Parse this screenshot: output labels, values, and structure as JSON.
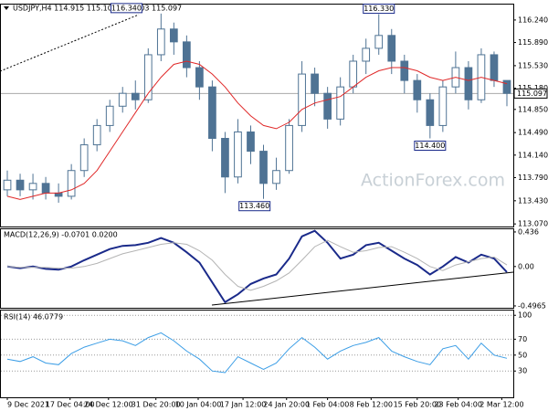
{
  "chart_data": [
    {
      "type": "candlestick",
      "title": "USDJPY,H4 114.915 115.101 114.903 115.097",
      "watermark": "ActionForex.com",
      "color": "#4f7394",
      "open": [
        113.6,
        113.75,
        113.6,
        113.7,
        113.55,
        113.5,
        113.9,
        114.3,
        114.6,
        114.9,
        115.1,
        115.0,
        115.7,
        116.1,
        115.9,
        115.5,
        115.2,
        114.4,
        113.8,
        114.5,
        114.2,
        113.7,
        113.9,
        114.6,
        115.4,
        115.1,
        114.7,
        115.2,
        115.6,
        115.8,
        116.0,
        115.6,
        115.3,
        115.0,
        114.6,
        115.2,
        115.5,
        115.0,
        115.7,
        115.3
      ],
      "high": [
        113.9,
        113.85,
        113.85,
        113.8,
        113.7,
        114.0,
        114.4,
        114.7,
        115.0,
        115.2,
        115.3,
        115.8,
        116.34,
        116.2,
        116.0,
        115.6,
        115.3,
        114.5,
        114.7,
        114.6,
        114.3,
        114.1,
        114.7,
        115.6,
        115.5,
        115.2,
        115.35,
        115.7,
        115.95,
        116.33,
        116.1,
        115.7,
        115.4,
        115.1,
        115.3,
        115.75,
        115.6,
        115.8,
        115.75,
        115.3
      ],
      "low": [
        113.5,
        113.5,
        113.45,
        113.45,
        113.4,
        113.45,
        113.8,
        114.2,
        114.5,
        114.8,
        114.85,
        114.95,
        115.6,
        115.7,
        115.35,
        115.0,
        114.2,
        113.55,
        113.7,
        114.0,
        113.46,
        113.6,
        113.85,
        114.5,
        114.9,
        114.55,
        114.6,
        115.1,
        115.4,
        115.7,
        115.4,
        115.1,
        114.8,
        114.4,
        114.5,
        115.1,
        114.85,
        114.95,
        115.2,
        114.9
      ],
      "close": [
        113.75,
        113.6,
        113.7,
        113.55,
        113.5,
        113.9,
        114.3,
        114.6,
        114.9,
        115.1,
        115.0,
        115.7,
        116.1,
        115.9,
        115.5,
        115.2,
        114.4,
        113.8,
        114.5,
        114.2,
        113.7,
        113.9,
        114.6,
        115.4,
        115.1,
        114.7,
        115.2,
        115.6,
        115.8,
        116.0,
        115.6,
        115.3,
        115.0,
        114.6,
        115.2,
        115.5,
        115.0,
        115.7,
        115.3,
        115.1
      ],
      "overlay": {
        "color": "#e02828",
        "values": [
          113.5,
          113.45,
          113.5,
          113.55,
          113.55,
          113.6,
          113.7,
          113.9,
          114.2,
          114.5,
          114.8,
          115.1,
          115.35,
          115.55,
          115.6,
          115.55,
          115.4,
          115.2,
          114.95,
          114.75,
          114.6,
          114.55,
          114.65,
          114.85,
          114.95,
          115.0,
          115.05,
          115.2,
          115.35,
          115.45,
          115.5,
          115.5,
          115.45,
          115.35,
          115.3,
          115.35,
          115.3,
          115.35,
          115.3,
          115.25
        ]
      },
      "current_price": {
        "value": 115.097,
        "label": "115.097"
      },
      "annotations": [
        {
          "value": 116.34,
          "label": "116.340"
        },
        {
          "value": 116.33,
          "label": "116.330"
        },
        {
          "value": 113.46,
          "label": "113.460"
        },
        {
          "value": 114.4,
          "label": "114.400"
        }
      ],
      "xlim": [
        -0.5,
        39.5
      ],
      "ylim": [
        113.03,
        116.48
      ],
      "yticks": [
        {
          "value": 116.24,
          "label": "116.240"
        },
        {
          "value": 115.89,
          "label": "115.890"
        },
        {
          "value": 115.53,
          "label": "115.530"
        },
        {
          "value": 115.18,
          "label": "115.180"
        },
        {
          "value": 114.85,
          "label": "114.850"
        },
        {
          "value": 114.49,
          "label": "114.490"
        },
        {
          "value": 114.14,
          "label": "114.140"
        },
        {
          "value": 113.79,
          "label": "113.790"
        },
        {
          "value": 113.43,
          "label": "113.430"
        },
        {
          "value": 113.07,
          "label": "113.070"
        }
      ]
    },
    {
      "type": "line",
      "title": "MACD(12,26,9) -0.0701 0.0200",
      "series": [
        {
          "color": "#1a2a8a",
          "width": 2,
          "values": [
            0.0,
            -0.02,
            0.0,
            -0.03,
            -0.04,
            0.0,
            0.08,
            0.15,
            0.22,
            0.26,
            0.27,
            0.3,
            0.36,
            0.3,
            0.18,
            0.05,
            -0.2,
            -0.45,
            -0.35,
            -0.22,
            -0.15,
            -0.1,
            0.1,
            0.38,
            0.45,
            0.3,
            0.1,
            0.15,
            0.27,
            0.3,
            0.2,
            0.1,
            0.02,
            -0.1,
            0.0,
            0.12,
            0.05,
            0.15,
            0.1,
            -0.07
          ]
        },
        {
          "color": "#b4b4b4",
          "width": 1,
          "values": [
            0.0,
            -0.01,
            -0.01,
            -0.01,
            -0.02,
            -0.02,
            0.0,
            0.04,
            0.1,
            0.16,
            0.2,
            0.24,
            0.28,
            0.3,
            0.28,
            0.2,
            0.08,
            -0.1,
            -0.25,
            -0.3,
            -0.25,
            -0.18,
            -0.08,
            0.08,
            0.25,
            0.33,
            0.25,
            0.18,
            0.2,
            0.24,
            0.25,
            0.18,
            0.1,
            0.0,
            -0.05,
            0.02,
            0.06,
            0.1,
            0.12,
            0.02
          ]
        }
      ],
      "xlim": [
        -0.5,
        39.5
      ],
      "ylim": [
        -0.52,
        0.47
      ],
      "yticks": [
        0.436,
        {
          "value": 0,
          "label": "0.00"
        },
        -0.4965
      ]
    },
    {
      "type": "line",
      "title": "RSI(14) 46.0779",
      "series": [
        {
          "color": "#3c9ee6",
          "width": 1,
          "values": [
            45,
            42,
            48,
            40,
            38,
            52,
            60,
            65,
            70,
            68,
            62,
            72,
            78,
            68,
            55,
            45,
            30,
            28,
            48,
            40,
            32,
            40,
            58,
            72,
            60,
            45,
            55,
            62,
            66,
            72,
            55,
            48,
            42,
            38,
            58,
            62,
            45,
            65,
            50,
            46
          ]
        }
      ],
      "xlim": [
        -0.5,
        39.5
      ],
      "ylim": [
        -3,
        106
      ],
      "yticks": [
        100,
        70,
        50,
        30
      ],
      "grid": true,
      "xticks": [
        {
          "value": 0,
          "label": "9 Dec 2021"
        },
        {
          "value": 4.9,
          "label": "17 Dec 04:00"
        },
        {
          "value": 7.9,
          "label": "24 Dec 12:00"
        },
        {
          "value": 11.6,
          "label": "31 Dec 20:00"
        },
        {
          "value": 14.9,
          "label": "10 Jan 04:00"
        },
        {
          "value": 18.4,
          "label": "17 Jan 12:00"
        },
        {
          "value": 21.8,
          "label": "24 Jan 20:00"
        },
        {
          "value": 25,
          "label": "1 Feb 04:00"
        },
        {
          "value": 28.4,
          "label": "8 Feb 12:00"
        },
        {
          "value": 32,
          "label": "15 Feb 20:00"
        },
        {
          "value": 35.2,
          "label": "23 Feb 04:00"
        },
        {
          "value": 38.6,
          "label": "2 Mar 12:00"
        }
      ]
    }
  ]
}
